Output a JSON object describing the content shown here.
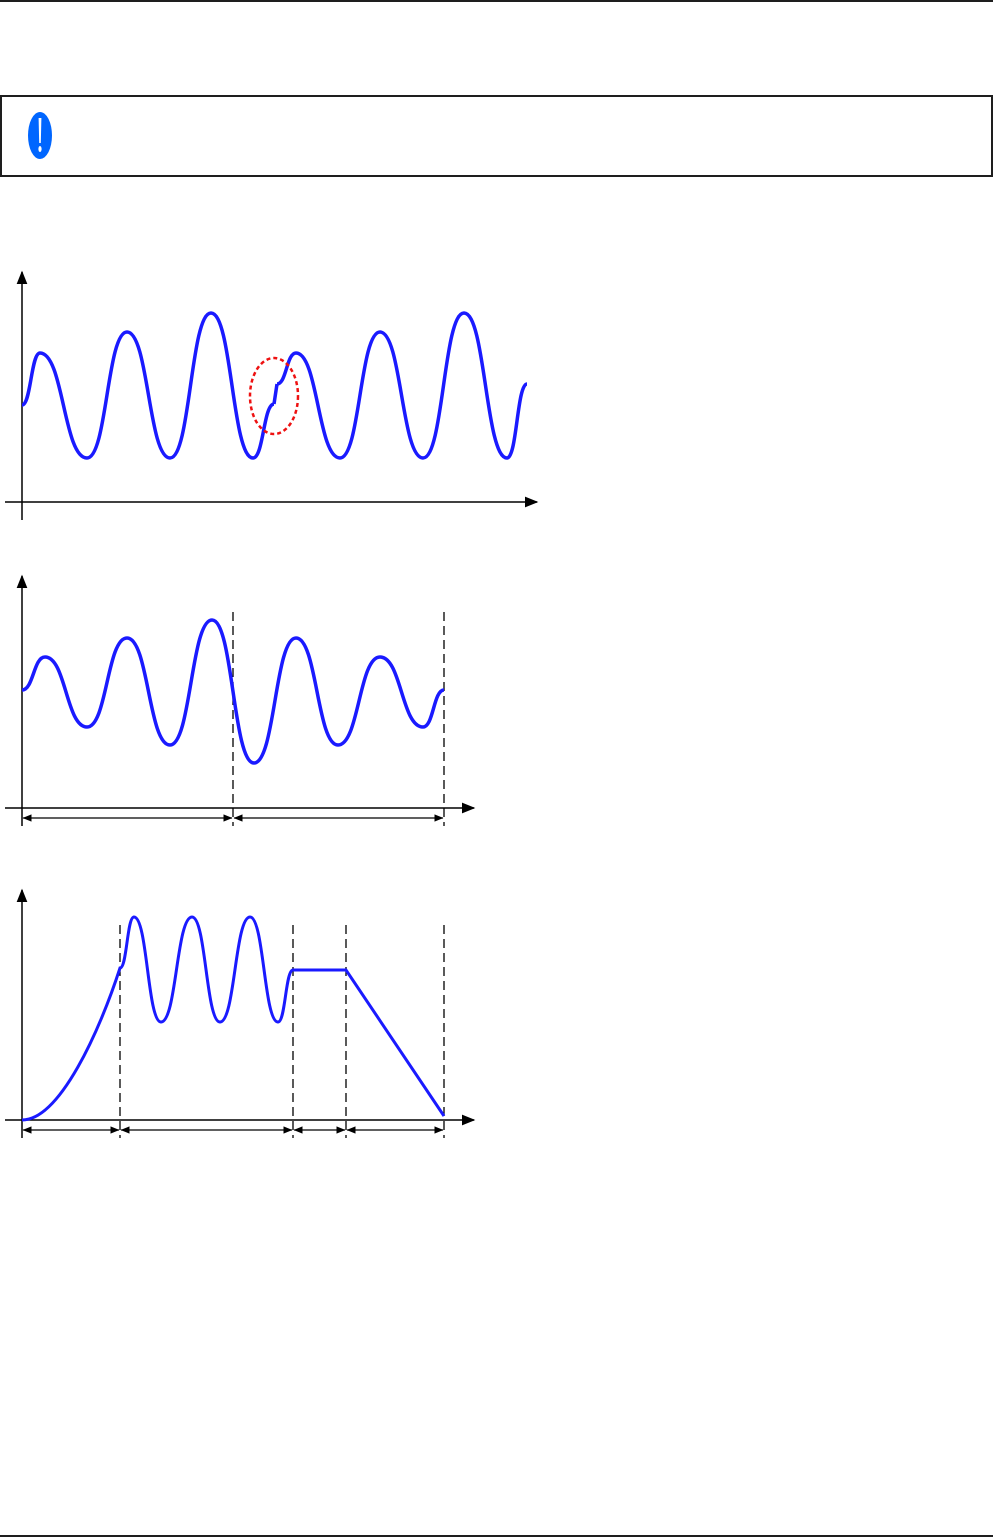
{
  "colors": {
    "rule": "#1e1e1e",
    "curve": "#1a1aff",
    "highlight": "#ee1111",
    "note_icon": "#0066ff"
  },
  "note": {
    "icon": "exclamation-icon"
  },
  "figures": [
    {
      "name": "waveform-with-discontinuity"
    },
    {
      "name": "waveform-two-sequences"
    },
    {
      "name": "waveform-four-sequences"
    }
  ]
}
